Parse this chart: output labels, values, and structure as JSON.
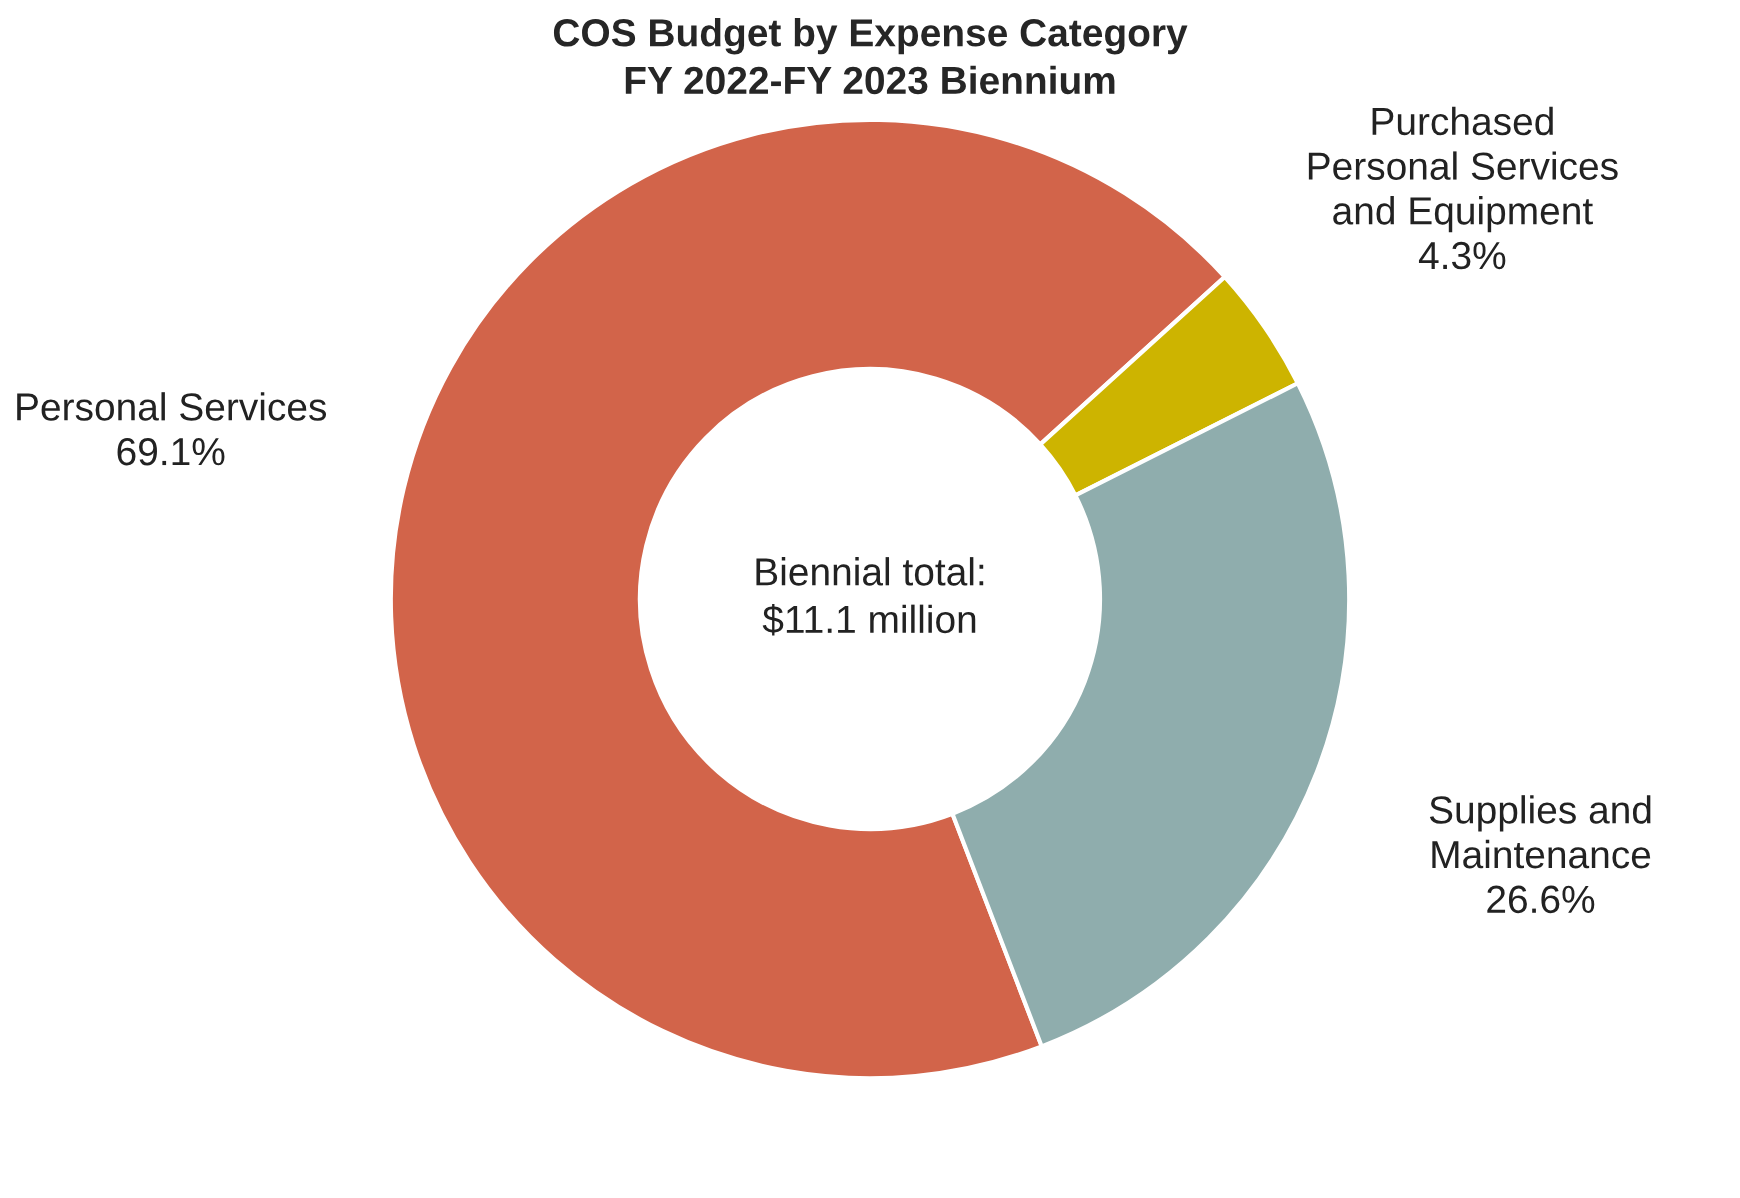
{
  "chart_data": {
    "type": "donut",
    "title": "COS Budget by Expense Category\nFY 2022-FY 2023 Biennium",
    "categories": [
      "Personal Services",
      "Purchased\nPersonal Services\nand Equipment",
      "Supplies and\nMaintenance"
    ],
    "values": [
      69.1,
      4.3,
      26.6
    ],
    "value_labels": [
      "69.1%",
      "4.3%",
      "26.6%"
    ],
    "colors": [
      "#d2644a",
      "#cdb400",
      "#8fadad"
    ],
    "annotations": [
      "Biennial total:\n$11.1 million"
    ]
  }
}
